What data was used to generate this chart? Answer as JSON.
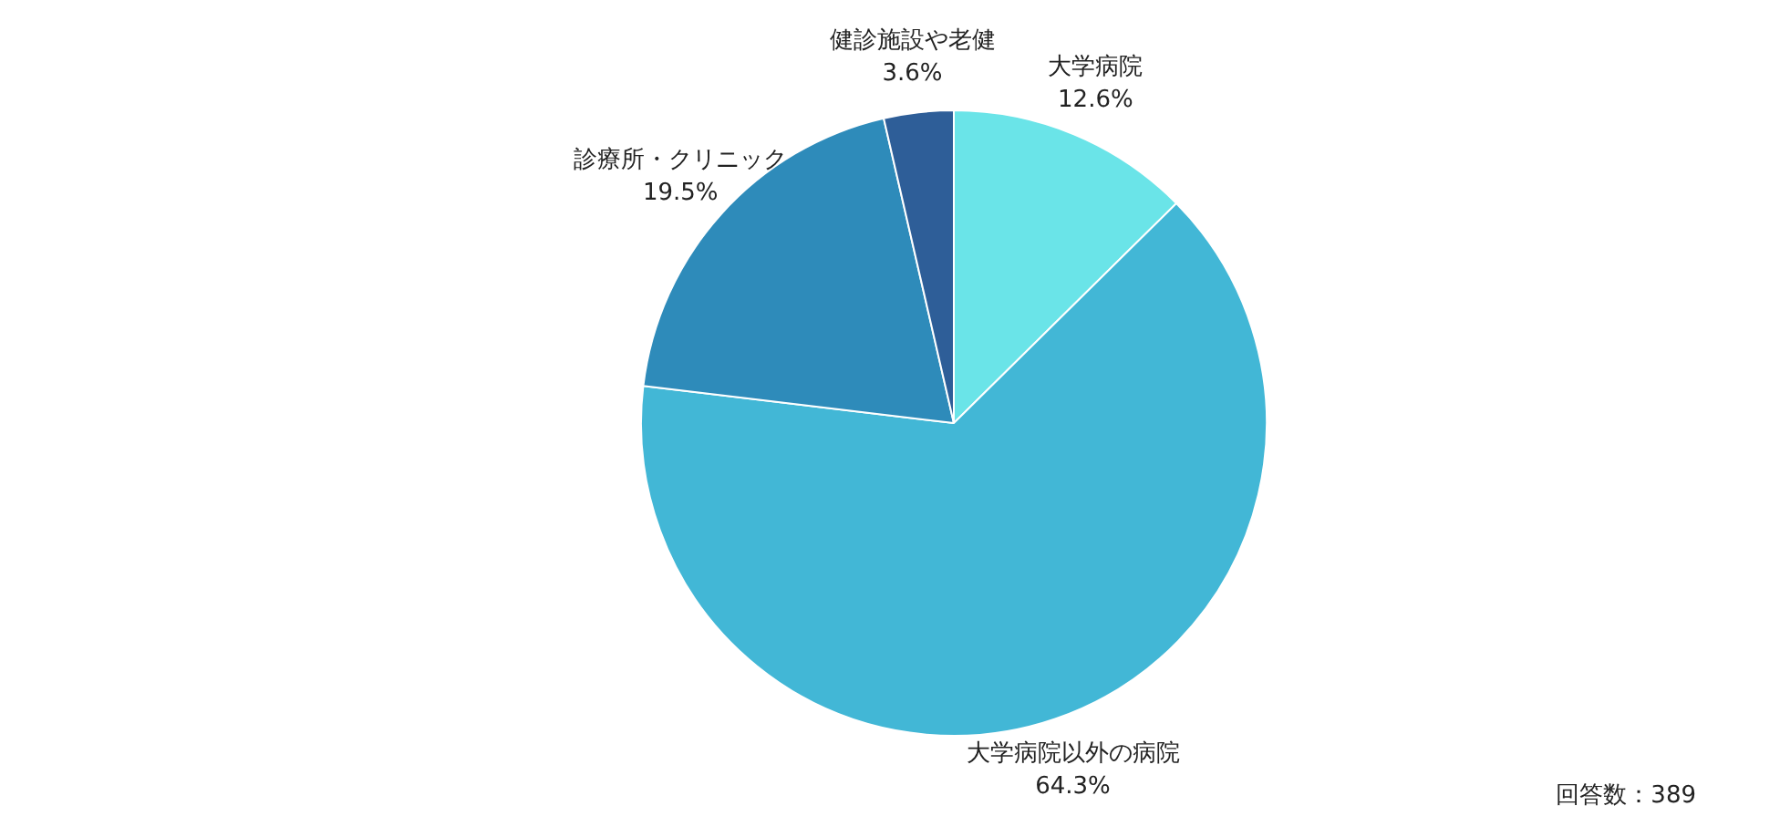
{
  "chart_data": {
    "type": "pie",
    "categories": [
      "大学病院",
      "大学病院以外の病院",
      "診療所・クリニック",
      "健診施設や老健"
    ],
    "values": [
      12.6,
      64.3,
      19.5,
      3.6
    ],
    "colors": [
      "#6ae4e8",
      "#42b7d6",
      "#2e8bba",
      "#2e5e98"
    ],
    "value_labels": [
      "12.6%",
      "64.3%",
      "19.5%",
      "3.6%"
    ],
    "legend": false,
    "annotations": [
      "回答数：389"
    ]
  }
}
